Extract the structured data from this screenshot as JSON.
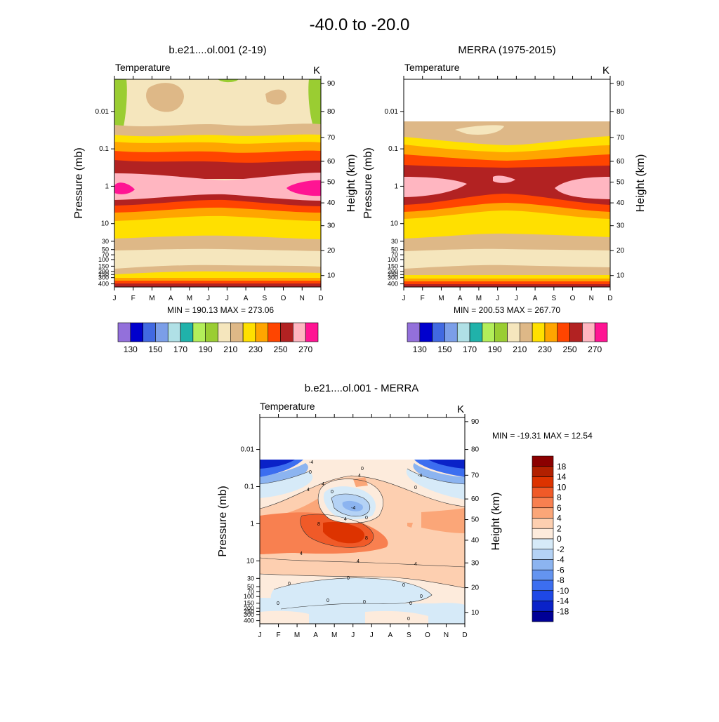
{
  "chart_data": {
    "title": "-40.0 to -20.0",
    "months": [
      "J",
      "F",
      "M",
      "A",
      "M",
      "J",
      "J",
      "A",
      "S",
      "O",
      "N",
      "D"
    ],
    "pressure_ticks": [
      "0.01",
      "0.1",
      "1",
      "10",
      "30",
      "50",
      "70",
      "100",
      "150",
      "200",
      "250",
      "300",
      "400"
    ],
    "height_ticks": [
      "90",
      "80",
      "70",
      "60",
      "50",
      "40",
      "30",
      "20",
      "10"
    ],
    "pressure_axis_label": "Pressure (mb)",
    "height_axis_label": "Height (km)",
    "panels": [
      {
        "type": "heatmap",
        "title": "b.e21....ol.001 (2-19)",
        "variable": "Temperature",
        "units": "K",
        "stats": "MIN = 190.13  MAX = 273.06",
        "min": 190.13,
        "max": 273.06
      },
      {
        "type": "heatmap",
        "title": "MERRA (1975-2015)",
        "variable": "Temperature",
        "units": "K",
        "stats": "MIN = 200.53  MAX = 267.70",
        "min": 200.53,
        "max": 267.7
      },
      {
        "type": "heatmap",
        "title": "b.e21....ol.001 - MERRA",
        "variable": "Temperature",
        "units": "K",
        "stats": "MIN = -19.31  MAX =  12.54",
        "min": -19.31,
        "max": 12.54
      }
    ],
    "temperature_colorbar": {
      "colors": [
        "#9370db",
        "#0000cd",
        "#4169e1",
        "#7b9ee8",
        "#b0e0e6",
        "#20b2aa",
        "#b3ee5a",
        "#9acd32",
        "#f5e6bd",
        "#deb887",
        "#ffe000",
        "#ffa500",
        "#ff4500",
        "#b22222",
        "#ffb6c1",
        "#ff1493"
      ],
      "labels": [
        "130",
        "150",
        "170",
        "190",
        "210",
        "230",
        "250",
        "270"
      ]
    },
    "difference_colorbar": {
      "colors": [
        "#8b0000",
        "#b22000",
        "#dd3300",
        "#f05a28",
        "#f88050",
        "#fba678",
        "#fdcfb0",
        "#fdebdc",
        "#d6eaf8",
        "#b4d2f5",
        "#8cb4f0",
        "#6494f0",
        "#3c6ef0",
        "#1e48e6",
        "#0a22c8",
        "#000096"
      ],
      "labels": [
        "18",
        "14",
        "10",
        "8",
        "6",
        "4",
        "2",
        "0",
        "-2",
        "-4",
        "-6",
        "-8",
        "-10",
        "-14",
        "-18"
      ]
    }
  }
}
